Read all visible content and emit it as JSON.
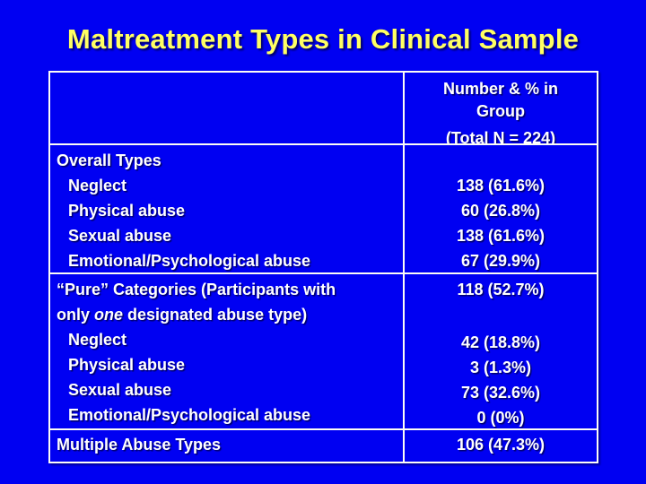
{
  "title": "Maltreatment Types in Clinical Sample",
  "colors": {
    "background": "#0000F2",
    "title_text": "#FFFF63",
    "table_text": "#FFFFFF",
    "table_border": "#FCFCF6"
  },
  "table": {
    "header": {
      "group_label_line1": "Number & % in",
      "group_label_line2": "Group",
      "total_label": "(Total N = 224)"
    },
    "overall": {
      "heading": "Overall Types",
      "rows": [
        {
          "label": "Neglect",
          "value": "138 (61.6%)"
        },
        {
          "label": "Physical abuse",
          "value": "60 (26.8%)"
        },
        {
          "label": "Sexual abuse",
          "value": "138 (61.6%)"
        },
        {
          "label": "Emotional/Psychological abuse",
          "value": "67 (29.9%)"
        }
      ]
    },
    "pure": {
      "heading_line1": "“Pure” Categories (Participants with",
      "heading_line2_prefix": "only ",
      "heading_line2_em": "one",
      "heading_line2_suffix": " designated abuse type)",
      "heading_value": "118 (52.7%)",
      "rows": [
        {
          "label": "Neglect",
          "value": "42 (18.8%)"
        },
        {
          "label": "Physical abuse",
          "value": "3 (1.3%)"
        },
        {
          "label": "Sexual abuse",
          "value": "73 (32.6%)"
        },
        {
          "label": "Emotional/Psychological abuse",
          "value": "0 (0%)"
        }
      ]
    },
    "multiple": {
      "label": "Multiple Abuse Types",
      "value": "106 (47.3%)"
    }
  }
}
